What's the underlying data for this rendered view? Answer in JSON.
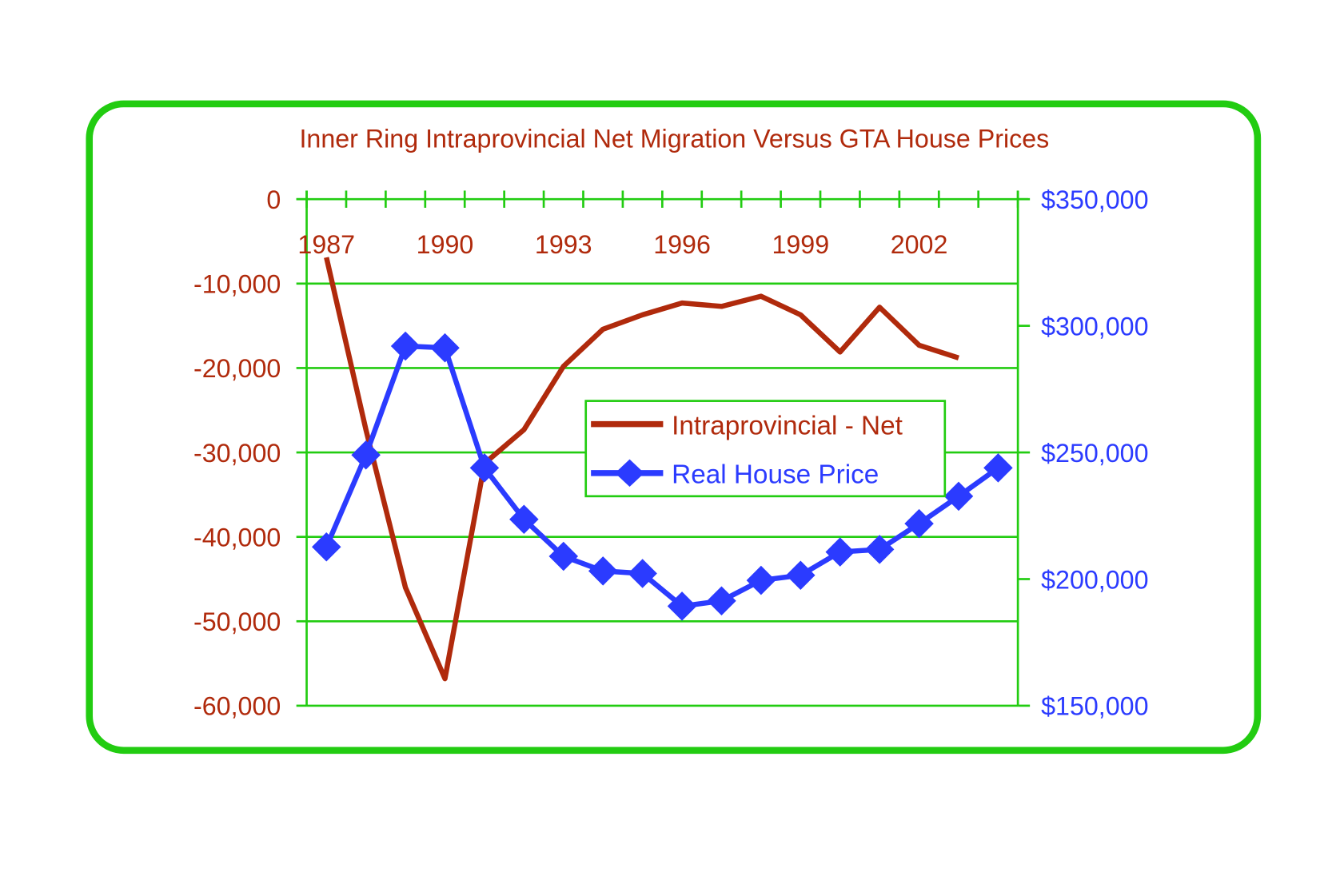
{
  "chart_data": {
    "type": "line",
    "title": "Inner Ring Intraprovincial Net Migration Versus GTA House Prices",
    "categories": [
      1987,
      1988,
      1989,
      1990,
      1991,
      1992,
      1993,
      1994,
      1995,
      1996,
      1997,
      1998,
      1999,
      2000,
      2001,
      2002,
      2003,
      2004
    ],
    "x_tick_labels": [
      "1987",
      "1990",
      "1993",
      "1996",
      "1999",
      "2002"
    ],
    "left_axis": {
      "ylim": [
        -60000,
        0
      ],
      "tick_labels": [
        "0",
        "-10,000",
        "-20,000",
        "-30,000",
        "-40,000",
        "-50,000",
        "-60,000"
      ],
      "ticks": [
        0,
        -10000,
        -20000,
        -30000,
        -40000,
        -50000,
        -60000
      ]
    },
    "right_axis": {
      "ylim": [
        150000,
        350000
      ],
      "tick_labels": [
        "$350,000",
        "$300,000",
        "$250,000",
        "$200,000",
        "$150,000"
      ],
      "ticks": [
        350000,
        300000,
        250000,
        200000,
        150000
      ]
    },
    "grid": true,
    "legend_placement": "center-right",
    "series": [
      {
        "name": "Intraprovincial - Net",
        "axis": "left",
        "color": "#B02A0C",
        "marker": "none",
        "values": [
          -6900,
          -27300,
          -46000,
          -56800,
          -31300,
          -27300,
          -19800,
          -15400,
          -13700,
          -12300,
          -12700,
          -11500,
          -13700,
          -18100,
          -12800,
          -17300,
          -18800,
          null
        ]
      },
      {
        "name": "Real House Price",
        "axis": "right",
        "color": "#2B3BFF",
        "marker": "diamond",
        "values": [
          212700,
          249000,
          292000,
          291300,
          243900,
          223600,
          209000,
          203200,
          202200,
          189300,
          191400,
          199500,
          201500,
          210700,
          211700,
          221900,
          232700,
          243900
        ]
      }
    ],
    "colors": {
      "frame": "#22CC11",
      "grid": "#22CC11",
      "left_text": "#B02A0C",
      "right_text": "#2B3BFF"
    }
  }
}
